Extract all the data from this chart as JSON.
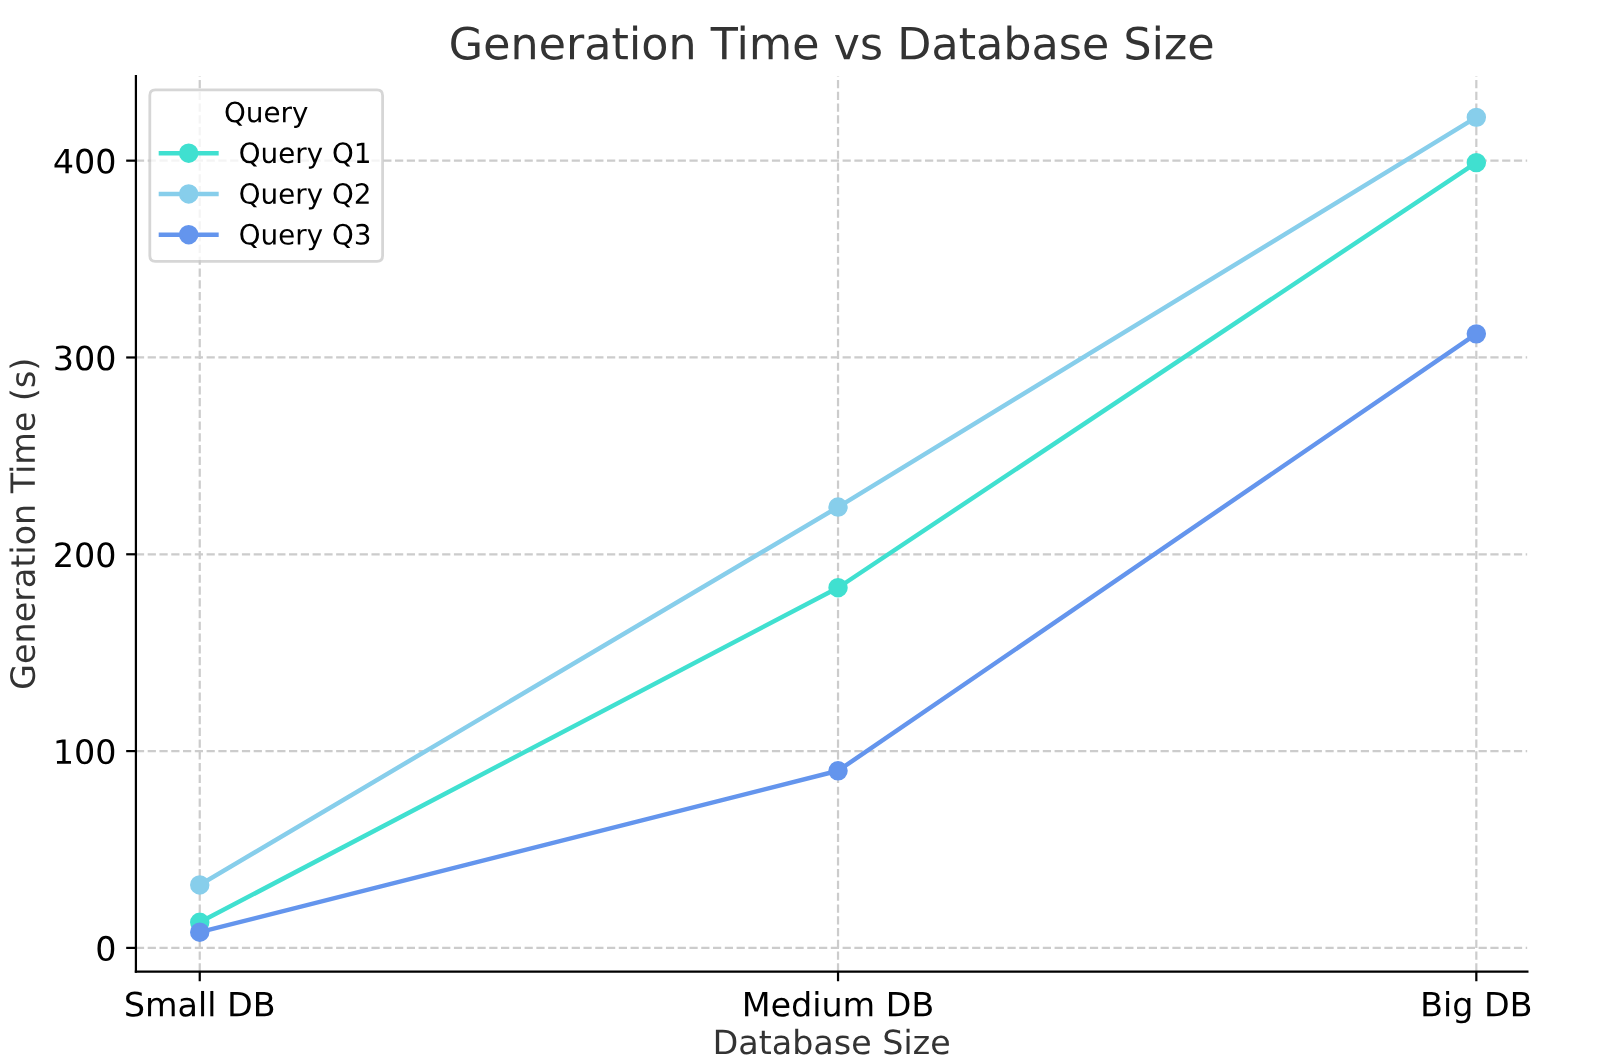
{
  "chart_data": {
    "type": "line",
    "title": "Generation Time vs Database Size",
    "xlabel": "Database Size",
    "ylabel": "Generation Time (s)",
    "legend_title": "Query",
    "categories": [
      "Small DB",
      "Medium DB",
      "Big DB"
    ],
    "series": [
      {
        "name": "Query Q1",
        "color": "#40e0d0",
        "values": [
          13,
          183,
          399
        ]
      },
      {
        "name": "Query Q2",
        "color": "#87ceeb",
        "values": [
          32,
          224,
          422
        ]
      },
      {
        "name": "Query Q3",
        "color": "#6495ed",
        "values": [
          8,
          90,
          312
        ]
      }
    ],
    "ylim": [
      -12,
      443
    ],
    "yticks": [
      0,
      100,
      200,
      300,
      400
    ],
    "grid": true,
    "legend": "top left",
    "marker": "circle",
    "line_style": "solid"
  }
}
